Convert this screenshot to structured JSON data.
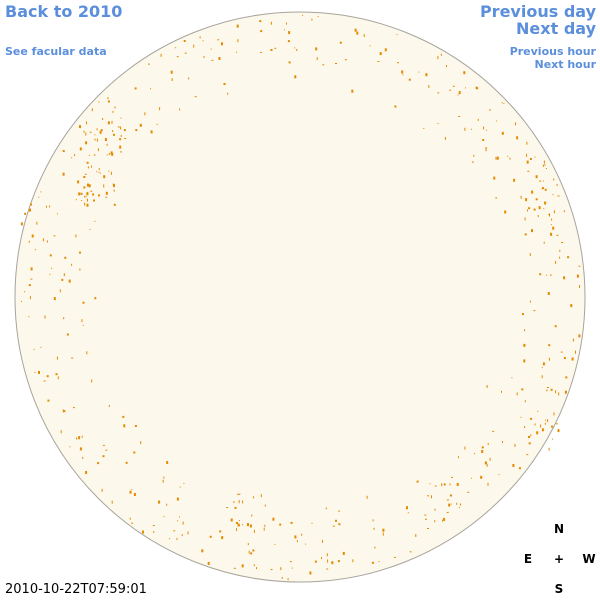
{
  "nav": {
    "back_year": "Back to 2010",
    "facular_data": "See facular data",
    "previous_day": "Previous day",
    "next_day": "Next day",
    "previous_hour": "Previous hour",
    "next_hour": "Next hour"
  },
  "timestamp": "2010-10-22T07:59:01",
  "compass": {
    "north": "N",
    "east": "E",
    "center": "+",
    "west": "W",
    "south": "S"
  }
}
